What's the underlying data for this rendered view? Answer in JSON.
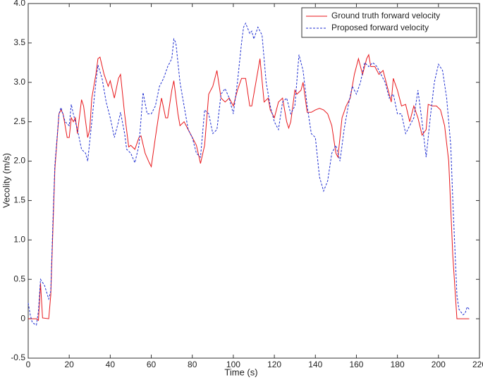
{
  "chart_data": {
    "type": "line",
    "xlabel": "Time (s)",
    "ylabel": "Vecolity (m/s)",
    "xlim": [
      0,
      220
    ],
    "xticks": [
      0,
      20,
      40,
      60,
      80,
      100,
      120,
      140,
      160,
      180,
      200,
      220
    ],
    "ylim": [
      -0.5,
      4
    ],
    "yticks": [
      -0.5,
      0,
      0.5,
      {
        "value": 1,
        "label": "1.0"
      },
      1.5,
      {
        "value": 2,
        "label": "2.0"
      },
      2.5,
      {
        "value": 3,
        "label": "3.0"
      },
      3.5,
      {
        "value": 4,
        "label": "4.0"
      }
    ],
    "legend": "upper right",
    "series": [
      {
        "name": "Ground truth forward velocity",
        "color": "#e8171b",
        "dash": "solid",
        "x": [
          0,
          2,
          4,
          5,
          6,
          7,
          10,
          11,
          13,
          15,
          16,
          17,
          19,
          20,
          21,
          22,
          23,
          24,
          26,
          27,
          29,
          30,
          31,
          33,
          34,
          35,
          37,
          39,
          40,
          42,
          44,
          45,
          47,
          49,
          50,
          52,
          54,
          55,
          57,
          59,
          60,
          62,
          64,
          65,
          67,
          68,
          70,
          71,
          73,
          74,
          76,
          78,
          80,
          82,
          84,
          86,
          88,
          90,
          92,
          94,
          96,
          98,
          100,
          102,
          104,
          106,
          108,
          109,
          111,
          113,
          115,
          117,
          118,
          120,
          122,
          124,
          126,
          127,
          128,
          130,
          131,
          133,
          134,
          136,
          138,
          140,
          142,
          144,
          146,
          148,
          150,
          151,
          153,
          155,
          157,
          159,
          161,
          163,
          165,
          166,
          167,
          169,
          171,
          173,
          175,
          177,
          178,
          180,
          182,
          184,
          186,
          188,
          190,
          192,
          194,
          195,
          197,
          199,
          201,
          203,
          205,
          207,
          209,
          211,
          215
        ],
        "values": [
          0,
          0,
          0,
          -0.02,
          0.45,
          0.01,
          0,
          0.3,
          1.9,
          2.6,
          2.65,
          2.6,
          2.3,
          2.3,
          2.55,
          2.5,
          2.55,
          2.35,
          2.78,
          2.7,
          2.3,
          2.4,
          2.8,
          3.1,
          3.3,
          3.32,
          3.1,
          2.95,
          3.02,
          2.8,
          3.05,
          3.1,
          2.6,
          2.18,
          2.2,
          2.15,
          2.3,
          2.32,
          2.1,
          1.98,
          1.93,
          2.3,
          2.65,
          2.8,
          2.55,
          2.55,
          2.9,
          3.02,
          2.6,
          2.45,
          2.5,
          2.4,
          2.3,
          2.2,
          1.97,
          2.2,
          2.85,
          2.95,
          3.15,
          2.8,
          2.75,
          2.8,
          2.7,
          2.9,
          3.05,
          3.05,
          2.7,
          2.7,
          3,
          3.3,
          2.75,
          2.8,
          2.65,
          2.55,
          2.75,
          2.8,
          2.5,
          2.42,
          2.5,
          2.9,
          2.85,
          2.9,
          3,
          2.62,
          2.62,
          2.65,
          2.67,
          2.65,
          2.6,
          2.45,
          2.1,
          2.05,
          2.55,
          2.7,
          2.8,
          3.1,
          3.3,
          3.1,
          3.3,
          3.35,
          3.2,
          3.2,
          3.1,
          3.15,
          2.95,
          2.75,
          3.05,
          2.9,
          2.7,
          2.72,
          2.5,
          2.7,
          2.55,
          2.33,
          2.4,
          2.72,
          2.7,
          2.7,
          2.65,
          2.45,
          2,
          0.8,
          0,
          0,
          0
        ]
      },
      {
        "name": "Proposed forward velocity",
        "color": "#1f2fd1",
        "dash": "dashed",
        "x": [
          0,
          1,
          2,
          4,
          5,
          6,
          8,
          10,
          11,
          12,
          13,
          15,
          16,
          18,
          20,
          21,
          22,
          24,
          26,
          28,
          29,
          31,
          33,
          34,
          36,
          38,
          40,
          42,
          44,
          45,
          47,
          48,
          50,
          52,
          54,
          56,
          58,
          60,
          62,
          64,
          66,
          68,
          70,
          71,
          72,
          74,
          76,
          78,
          80,
          82,
          84,
          86,
          88,
          90,
          92,
          94,
          96,
          98,
          100,
          102,
          104,
          105,
          106,
          108,
          109,
          110,
          112,
          114,
          116,
          118,
          120,
          122,
          124,
          126,
          128,
          130,
          132,
          134,
          136,
          138,
          140,
          142,
          144,
          146,
          148,
          150,
          152,
          154,
          156,
          158,
          160,
          162,
          164,
          166,
          168,
          170,
          172,
          174,
          176,
          178,
          180,
          182,
          184,
          186,
          188,
          190,
          192,
          194,
          196,
          198,
          200,
          202,
          204,
          206,
          207,
          209,
          210,
          212,
          213,
          214,
          215
        ],
        "values": [
          0.2,
          0.05,
          -0.05,
          -0.08,
          0.1,
          0.5,
          0.42,
          0.25,
          0.35,
          1.2,
          1.95,
          2.6,
          2.68,
          2.5,
          2.45,
          2.72,
          2.6,
          2.4,
          2.15,
          2.1,
          2,
          2.5,
          3,
          3.22,
          3.05,
          2.75,
          2.55,
          2.3,
          2.5,
          2.62,
          2.35,
          2.15,
          2.1,
          1.98,
          2.2,
          2.87,
          2.6,
          2.6,
          2.7,
          2.95,
          3.05,
          3.2,
          3.3,
          3.55,
          3.5,
          3,
          2.7,
          2.4,
          2.3,
          2.1,
          2.05,
          2.65,
          2.6,
          2.35,
          2.4,
          2.85,
          2.92,
          2.8,
          2.6,
          3,
          3.5,
          3.7,
          3.75,
          3.62,
          3.65,
          3.55,
          3.7,
          3.6,
          3,
          2.7,
          2.5,
          2.4,
          2.75,
          2.8,
          2.6,
          2.7,
          3.35,
          3.15,
          2.7,
          2.35,
          2.3,
          1.8,
          1.62,
          1.75,
          2.1,
          2.2,
          2,
          2.4,
          2.7,
          2.95,
          2.85,
          3,
          3.25,
          3.2,
          3.25,
          3.2,
          3.1,
          3,
          2.8,
          2.85,
          2.6,
          2.6,
          2.35,
          2.45,
          2.55,
          2.9,
          2.5,
          2.05,
          2.55,
          3,
          3.23,
          3.15,
          2.8,
          2.2,
          1.5,
          0.3,
          0.12,
          0.05,
          0.07,
          0.15,
          0.12
        ]
      }
    ]
  }
}
